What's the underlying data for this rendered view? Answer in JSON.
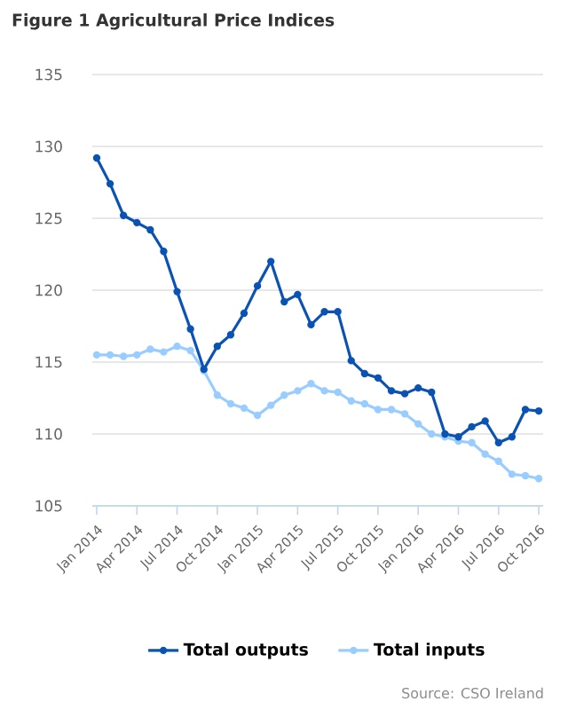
{
  "chart_data": {
    "type": "line",
    "title": "Figure 1 Agricultural Price Indices",
    "categories": [
      "Jan 2014",
      null,
      null,
      "Apr 2014",
      null,
      null,
      "Jul 2014",
      null,
      null,
      "Oct 2014",
      null,
      null,
      "Jan 2015",
      null,
      null,
      "Apr 2015",
      null,
      null,
      "Jul 2015",
      null,
      null,
      "Oct 2015",
      null,
      null,
      "Jan 2016",
      null,
      null,
      "Apr 2016",
      null,
      null,
      "Jul 2016",
      null,
      null,
      "Oct 2016"
    ],
    "series": [
      {
        "name": "Total outputs",
        "color": "#0a53b5",
        "values": [
          129.2,
          127.4,
          125.2,
          124.7,
          124.2,
          122.7,
          119.9,
          117.3,
          114.5,
          116.1,
          116.9,
          118.4,
          120.3,
          122.0,
          119.2,
          119.7,
          117.6,
          118.5,
          118.5,
          115.1,
          114.2,
          113.9,
          113.0,
          112.8,
          113.2,
          112.9,
          110.0,
          109.8,
          110.5,
          110.9,
          109.4,
          109.8,
          111.7,
          111.6
        ]
      },
      {
        "name": "Total inputs",
        "color": "#99ccff",
        "values": [
          115.5,
          115.5,
          115.4,
          115.5,
          115.9,
          115.7,
          116.1,
          115.8,
          114.4,
          112.7,
          112.1,
          111.8,
          111.3,
          112.0,
          112.7,
          113.0,
          113.5,
          113.0,
          112.9,
          112.3,
          112.1,
          111.7,
          111.7,
          111.4,
          110.7,
          110.0,
          109.8,
          109.5,
          109.4,
          108.6,
          108.1,
          107.2,
          107.1,
          106.9
        ]
      }
    ],
    "ylim": [
      105,
      135
    ],
    "yticks": [
      105,
      110,
      115,
      120,
      125,
      130,
      135
    ],
    "grid": "y",
    "legend": "bottom",
    "marker": "circle",
    "line_style": "solid",
    "annotations": [
      "Source: CSO Ireland"
    ]
  }
}
